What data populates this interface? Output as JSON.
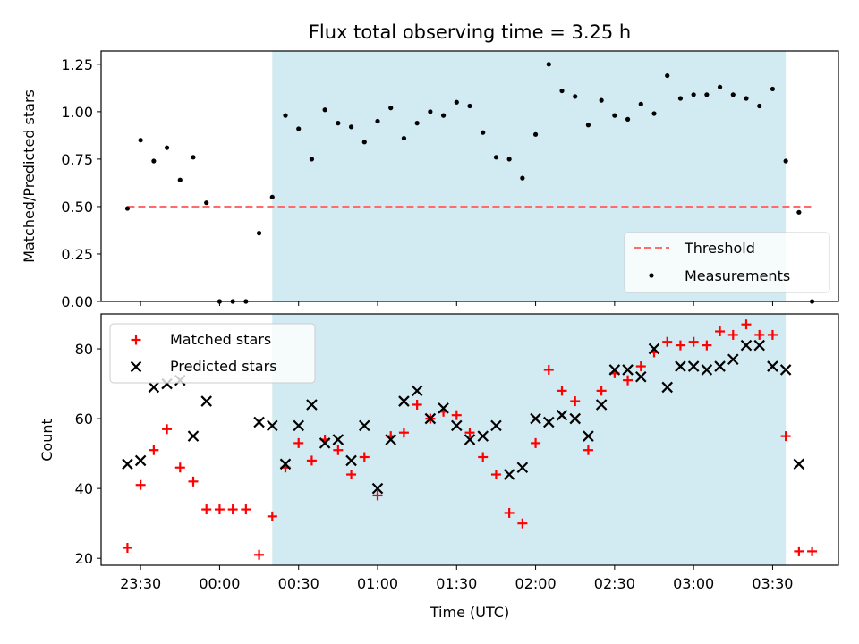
{
  "chart_data": [
    {
      "type": "scatter",
      "title": "Flux total observing time = 3.25 h",
      "ylabel": "Matched/Predicted stars",
      "ylim": [
        0,
        1.32
      ],
      "yticks": [
        0.0,
        0.25,
        0.5,
        0.75,
        1.0,
        1.25
      ],
      "ytick_labels": [
        "0.00",
        "0.25",
        "0.50",
        "0.75",
        "1.00",
        "1.25"
      ],
      "shaded_span": {
        "x": [
          "00:20",
          "03:35"
        ],
        "color": "#add8e6"
      },
      "legend": {
        "placement": "lower right"
      },
      "series": [
        {
          "name": "Threshold",
          "style": "dashed-line",
          "color": "#ff6b6b",
          "x": [
            "23:25",
            "03:45"
          ],
          "y": [
            0.5,
            0.5
          ]
        },
        {
          "name": "Measurements",
          "style": "dot",
          "color": "#000000",
          "x": [
            "23:25",
            "23:30",
            "23:35",
            "23:40",
            "23:45",
            "23:50",
            "23:55",
            "00:00",
            "00:05",
            "00:10",
            "00:15",
            "00:20",
            "00:25",
            "00:30",
            "00:35",
            "00:40",
            "00:45",
            "00:50",
            "00:55",
            "01:00",
            "01:05",
            "01:10",
            "01:15",
            "01:20",
            "01:25",
            "01:30",
            "01:35",
            "01:40",
            "01:45",
            "01:50",
            "01:55",
            "02:00",
            "02:05",
            "02:10",
            "02:15",
            "02:20",
            "02:25",
            "02:30",
            "02:35",
            "02:40",
            "02:45",
            "02:50",
            "02:55",
            "03:00",
            "03:05",
            "03:10",
            "03:15",
            "03:20",
            "03:25",
            "03:30",
            "03:35",
            "03:40",
            "03:45"
          ],
          "y": [
            0.49,
            0.85,
            0.74,
            0.81,
            0.64,
            0.76,
            0.52,
            0.0,
            0.0,
            0.0,
            0.36,
            0.55,
            0.98,
            0.91,
            0.75,
            1.01,
            0.94,
            0.92,
            0.84,
            0.95,
            1.02,
            0.86,
            0.94,
            1.0,
            0.98,
            1.05,
            1.03,
            0.89,
            0.76,
            0.75,
            0.65,
            0.88,
            1.25,
            1.11,
            1.08,
            0.93,
            1.06,
            0.98,
            0.96,
            1.04,
            0.99,
            1.19,
            1.07,
            1.09,
            1.09,
            1.13,
            1.09,
            1.07,
            1.03,
            1.12,
            0.74,
            0.47,
            0.0
          ]
        }
      ]
    },
    {
      "type": "scatter",
      "ylabel": "Count",
      "xlabel": "Time (UTC)",
      "ylim": [
        18,
        90
      ],
      "yticks": [
        20,
        40,
        60,
        80
      ],
      "ytick_labels": [
        "20",
        "40",
        "60",
        "80"
      ],
      "xticks": [
        "23:30",
        "00:00",
        "00:30",
        "01:00",
        "01:30",
        "02:00",
        "02:30",
        "03:00",
        "03:30"
      ],
      "xlim": [
        "23:15",
        "03:55"
      ],
      "shaded_span": {
        "x": [
          "00:20",
          "03:35"
        ],
        "color": "#add8e6"
      },
      "legend": {
        "placement": "upper left"
      },
      "series": [
        {
          "name": "Matched stars",
          "style": "plus",
          "color": "#ff0000",
          "x": [
            "23:25",
            "23:30",
            "23:35",
            "23:40",
            "23:45",
            "23:50",
            "23:55",
            "00:00",
            "00:05",
            "00:10",
            "00:15",
            "00:20",
            "00:25",
            "00:30",
            "00:35",
            "00:40",
            "00:45",
            "00:50",
            "00:55",
            "01:00",
            "01:05",
            "01:10",
            "01:15",
            "01:20",
            "01:25",
            "01:30",
            "01:35",
            "01:40",
            "01:45",
            "01:50",
            "01:55",
            "02:00",
            "02:05",
            "02:10",
            "02:15",
            "02:20",
            "02:25",
            "02:30",
            "02:35",
            "02:40",
            "02:45",
            "02:50",
            "02:55",
            "03:00",
            "03:05",
            "03:10",
            "03:15",
            "03:20",
            "03:25",
            "03:30",
            "03:35",
            "03:40",
            "03:45"
          ],
          "y": [
            23,
            41,
            51,
            57,
            46,
            42,
            34,
            34,
            34,
            34,
            21,
            32,
            46,
            53,
            48,
            54,
            51,
            44,
            49,
            38,
            55,
            56,
            64,
            60,
            62,
            61,
            56,
            49,
            44,
            33,
            30,
            53,
            74,
            68,
            65,
            51,
            68,
            73,
            71,
            75,
            79,
            82,
            81,
            82,
            81,
            85,
            84,
            87,
            84,
            84,
            55,
            22,
            22
          ]
        },
        {
          "name": "Predicted stars",
          "style": "x",
          "color": "#000000",
          "x": [
            "23:25",
            "23:30",
            "23:35",
            "23:40",
            "23:45",
            "23:50",
            "23:55",
            "00:15",
            "00:20",
            "00:25",
            "00:30",
            "00:35",
            "00:40",
            "00:45",
            "00:50",
            "00:55",
            "01:00",
            "01:05",
            "01:10",
            "01:15",
            "01:20",
            "01:25",
            "01:30",
            "01:35",
            "01:40",
            "01:45",
            "01:50",
            "01:55",
            "02:00",
            "02:05",
            "02:10",
            "02:15",
            "02:20",
            "02:25",
            "02:30",
            "02:35",
            "02:40",
            "02:45",
            "02:50",
            "02:55",
            "03:00",
            "03:05",
            "03:10",
            "03:15",
            "03:20",
            "03:25",
            "03:30",
            "03:35",
            "03:40"
          ],
          "y": [
            47,
            48,
            69,
            70,
            71,
            55,
            65,
            59,
            58,
            47,
            58,
            64,
            53,
            54,
            48,
            58,
            40,
            54,
            65,
            68,
            60,
            63,
            58,
            54,
            55,
            58,
            44,
            46,
            60,
            59,
            61,
            60,
            55,
            64,
            74,
            74,
            72,
            80,
            69,
            75,
            75,
            74,
            75,
            77,
            81,
            81,
            75,
            74,
            47
          ]
        }
      ]
    }
  ]
}
